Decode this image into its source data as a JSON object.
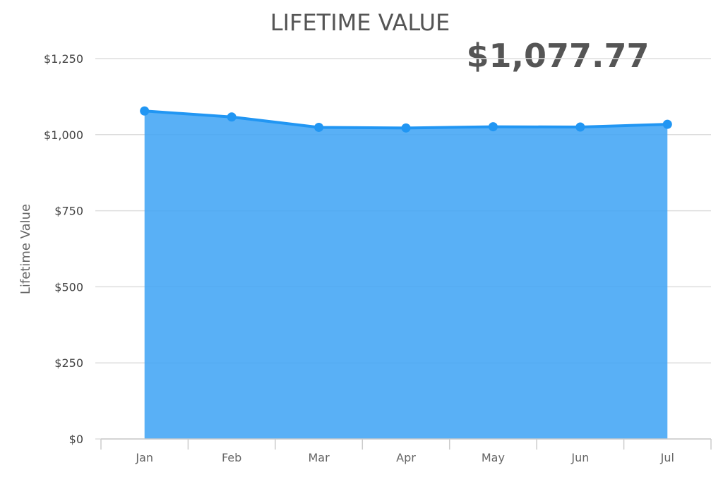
{
  "chart_data": {
    "type": "area",
    "title": "LIFETIME VALUE",
    "headline_value": "$1,077.77",
    "ylabel": "Lifetime Value",
    "xlabel": "",
    "categories": [
      "Jan",
      "Feb",
      "Mar",
      "Apr",
      "May",
      "Jun",
      "Jul"
    ],
    "values": [
      1077.77,
      1058,
      1024,
      1022,
      1026,
      1025,
      1034
    ],
    "ylim": [
      0,
      1250
    ],
    "yticks": [
      0,
      250,
      500,
      750,
      1000,
      1250
    ],
    "ytick_labels": [
      "$0",
      "$250",
      "$500",
      "$750",
      "$1,000",
      "$1,250"
    ],
    "grid": true,
    "colors": {
      "line": "#2196f3",
      "fill": "#42a5f5",
      "title": "#555555"
    }
  }
}
